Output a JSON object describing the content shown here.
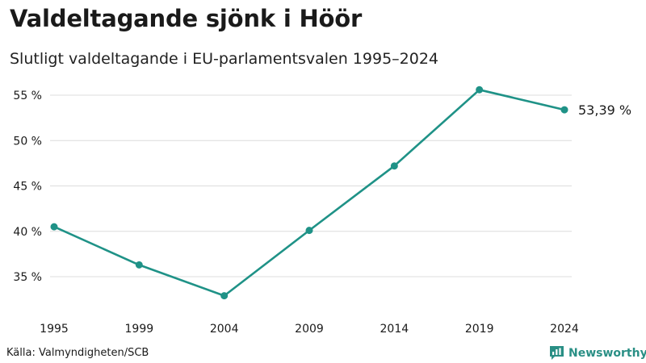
{
  "header": {
    "title": "Valdeltagande sjönk i Höör",
    "subtitle": "Slutligt valdeltagande i EU-parlamentsvalen 1995–2024"
  },
  "footer": {
    "source": "Källa: Valmyndigheten/SCB",
    "brand": "Newsworthy",
    "brand_icon": "bar-chart-speech-bubble-icon"
  },
  "colors": {
    "line": "#1f9287",
    "grid": "#dcdcdc",
    "brand": "#2a8f85"
  },
  "chart_data": {
    "type": "line",
    "title": "Valdeltagande sjönk i Höör",
    "subtitle": "Slutligt valdeltagande i EU-parlamentsvalen 1995–2024",
    "categories": [
      "1995",
      "1999",
      "2004",
      "2009",
      "2014",
      "2019",
      "2024"
    ],
    "series": [
      {
        "name": "Valdeltagande",
        "values": [
          40.5,
          36.3,
          32.9,
          40.1,
          47.2,
          55.6,
          53.39
        ]
      }
    ],
    "ylim": [
      32,
      56
    ],
    "yticks": [
      35,
      40,
      45,
      50,
      55
    ],
    "ytick_labels": [
      "35 %",
      "40 %",
      "45 %",
      "50 %",
      "55 %"
    ],
    "end_label": "53,39 %",
    "xlabel": "",
    "ylabel": "",
    "grid": true,
    "legend": "none"
  }
}
